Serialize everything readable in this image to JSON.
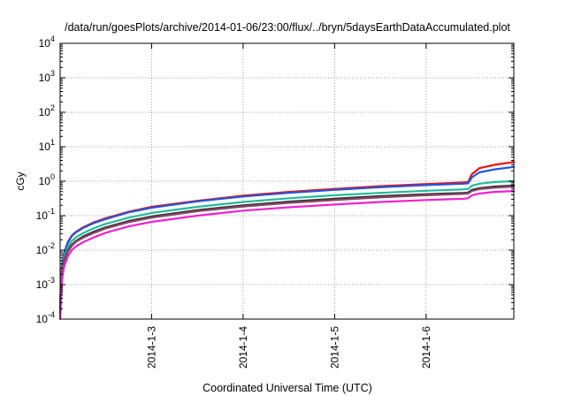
{
  "chart_data": {
    "type": "line",
    "title": "/data/run/goesPlots/archive/2014-01-06/23:00/flux/../bryn/5daysEarthDataAccumulated.plot",
    "xlabel": "Coordinated Universal Time (UTC)",
    "ylabel": "cGy",
    "y_scale": "log",
    "ylim": [
      0.0001,
      10000
    ],
    "xlim": [
      "2014-01-02 00:00",
      "2014-01-06 23:00"
    ],
    "y_ticks": [
      {
        "base": "10",
        "exp": "-4"
      },
      {
        "base": "10",
        "exp": "-3"
      },
      {
        "base": "10",
        "exp": "-2"
      },
      {
        "base": "10",
        "exp": "-1"
      },
      {
        "base": "10",
        "exp": "0"
      },
      {
        "base": "10",
        "exp": "1"
      },
      {
        "base": "10",
        "exp": "2"
      },
      {
        "base": "10",
        "exp": "3"
      },
      {
        "base": "10",
        "exp": "4"
      }
    ],
    "x_ticks": [
      "2014-1-3",
      "2014-1-4",
      "2014-1-5",
      "2014-1-6"
    ],
    "grid": true,
    "legend": "none",
    "x_hours": [
      0,
      0.5,
      1,
      2,
      3,
      4,
      6,
      9,
      12,
      18,
      24,
      36,
      48,
      60,
      72,
      84,
      96,
      106,
      107,
      108,
      110,
      114,
      119
    ],
    "series": [
      {
        "color": "#ee1111",
        "values": [
          0.0003,
          0.004,
          0.008,
          0.017,
          0.026,
          0.033,
          0.046,
          0.065,
          0.085,
          0.13,
          0.18,
          0.27,
          0.38,
          0.49,
          0.6,
          0.72,
          0.83,
          0.92,
          0.94,
          1.6,
          2.4,
          3.0,
          3.6
        ]
      },
      {
        "color": "#2255dd",
        "values": [
          0.0003,
          0.004,
          0.008,
          0.016,
          0.025,
          0.032,
          0.044,
          0.062,
          0.08,
          0.125,
          0.17,
          0.26,
          0.36,
          0.46,
          0.56,
          0.67,
          0.77,
          0.85,
          0.87,
          1.3,
          1.8,
          2.2,
          2.6
        ]
      },
      {
        "color": "#22bb99",
        "values": [
          0.0002,
          0.0028,
          0.006,
          0.012,
          0.018,
          0.023,
          0.031,
          0.044,
          0.058,
          0.088,
          0.12,
          0.18,
          0.25,
          0.32,
          0.39,
          0.46,
          0.53,
          0.58,
          0.6,
          0.74,
          0.85,
          0.95,
          1.0
        ]
      },
      {
        "color": "#333333",
        "values": [
          0.00015,
          0.0022,
          0.0048,
          0.0095,
          0.014,
          0.018,
          0.025,
          0.035,
          0.046,
          0.07,
          0.095,
          0.145,
          0.2,
          0.255,
          0.31,
          0.37,
          0.42,
          0.46,
          0.47,
          0.56,
          0.63,
          0.7,
          0.75
        ]
      },
      {
        "color": "#884466",
        "values": [
          0.00015,
          0.002,
          0.0044,
          0.0088,
          0.013,
          0.017,
          0.023,
          0.032,
          0.043,
          0.065,
          0.088,
          0.135,
          0.185,
          0.235,
          0.285,
          0.34,
          0.39,
          0.43,
          0.44,
          0.52,
          0.59,
          0.65,
          0.7
        ]
      },
      {
        "color": "#ee22cc",
        "values": [
          0.0001,
          0.0014,
          0.0032,
          0.0065,
          0.0098,
          0.0125,
          0.017,
          0.024,
          0.032,
          0.049,
          0.066,
          0.1,
          0.14,
          0.175,
          0.21,
          0.25,
          0.285,
          0.31,
          0.32,
          0.39,
          0.44,
          0.49,
          0.52
        ]
      }
    ]
  }
}
